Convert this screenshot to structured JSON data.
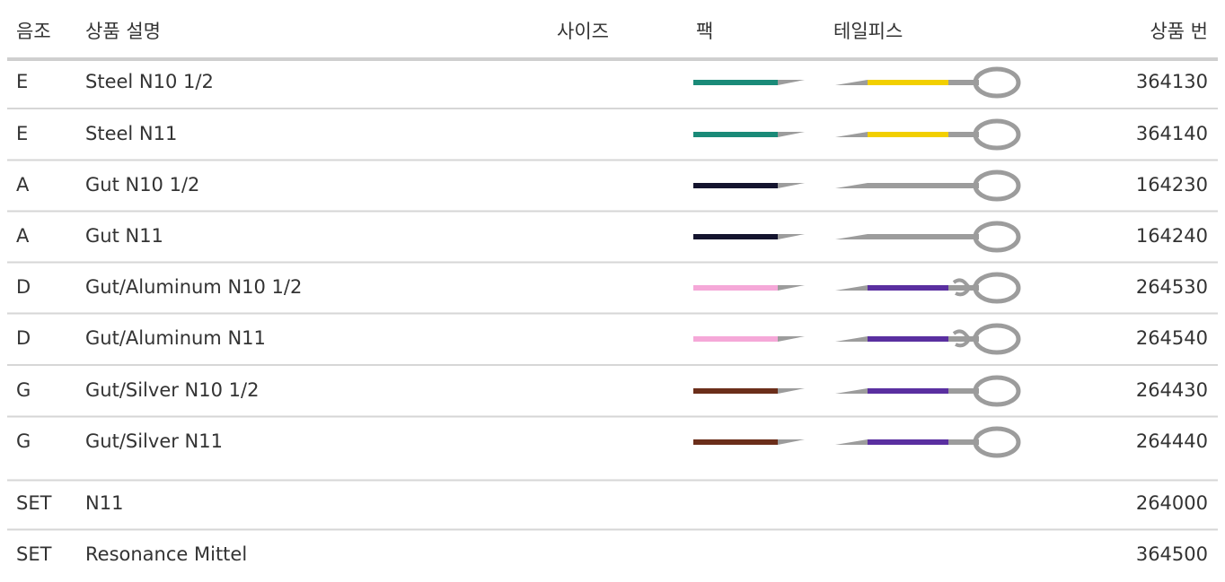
{
  "header": {
    "columns": [
      "음조",
      "상품 설명",
      "사이즈",
      "팩",
      "테일피스",
      "상품 번"
    ]
  },
  "table": {
    "rows": [
      {
        "note": "E",
        "description": "Steel N10 1/2",
        "pack_color": "#1a8a78",
        "tail_color": "#f2cf00",
        "tail_knot": false,
        "number": "364130"
      },
      {
        "note": "E",
        "description": "Steel N11",
        "pack_color": "#1a8a78",
        "tail_color": "#f2cf00",
        "tail_knot": false,
        "number": "364140"
      },
      {
        "note": "A",
        "description": "Gut N10 1/2",
        "pack_color": "#14142e",
        "tail_color": "#9c9c9c",
        "tail_knot": false,
        "number": "164230"
      },
      {
        "note": "A",
        "description": "Gut N11",
        "pack_color": "#14142e",
        "tail_color": "#9c9c9c",
        "tail_knot": false,
        "number": "164240"
      },
      {
        "note": "D",
        "description": "Gut/Aluminum N10 1/2",
        "pack_color": "#f5a8d8",
        "tail_color": "#5a2fa0",
        "tail_knot": true,
        "number": "264530"
      },
      {
        "note": "D",
        "description": "Gut/Aluminum N11",
        "pack_color": "#f5a8d8",
        "tail_color": "#5a2fa0",
        "tail_knot": true,
        "number": "264540"
      },
      {
        "note": "G",
        "description": "Gut/Silver N10 1/2",
        "pack_color": "#6b2e1a",
        "tail_color": "#5a2fa0",
        "tail_knot": false,
        "number": "264430"
      },
      {
        "note": "G",
        "description": "Gut/Silver N11",
        "pack_color": "#6b2e1a",
        "tail_color": "#5a2fa0",
        "tail_knot": false,
        "number": "264440"
      },
      {
        "note": "SET",
        "description": "N11",
        "number": "264000"
      },
      {
        "note": "SET",
        "description": "Resonance Mittel",
        "number": "364500"
      }
    ]
  }
}
